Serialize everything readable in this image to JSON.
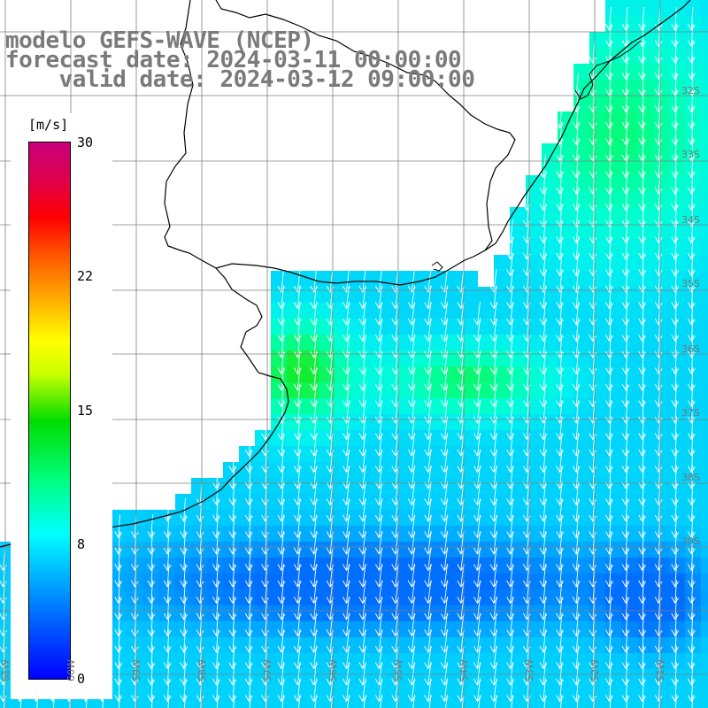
{
  "map": {
    "title_line1": "modelo GEFS-WAVE (NCEP)",
    "title_line2": "forecast date: 2024-03-11 00:00:00",
    "title_line3": "    valid date: 2024-03-12 09:00:00",
    "variable": "wind speed and direction",
    "units": "[m/s]",
    "colorbar_ticks": [
      "30",
      "22",
      "15",
      "8",
      "0"
    ],
    "lat_labels": [
      "32S",
      "33S",
      "34S",
      "35S",
      "36S",
      "37S",
      "38S",
      "39S"
    ],
    "lon_labels": [
      "61W",
      "60W",
      "59W",
      "58W",
      "57W",
      "56W",
      "55W",
      "54W",
      "53W",
      "52W",
      "51W"
    ],
    "wind_direction": "from north / north-northeast",
    "colors": {
      "land": "#ffffff",
      "grid": "#808080",
      "coastline": "#000000",
      "arrows": "#ffffff",
      "title_text": "#7a7a7a"
    }
  }
}
